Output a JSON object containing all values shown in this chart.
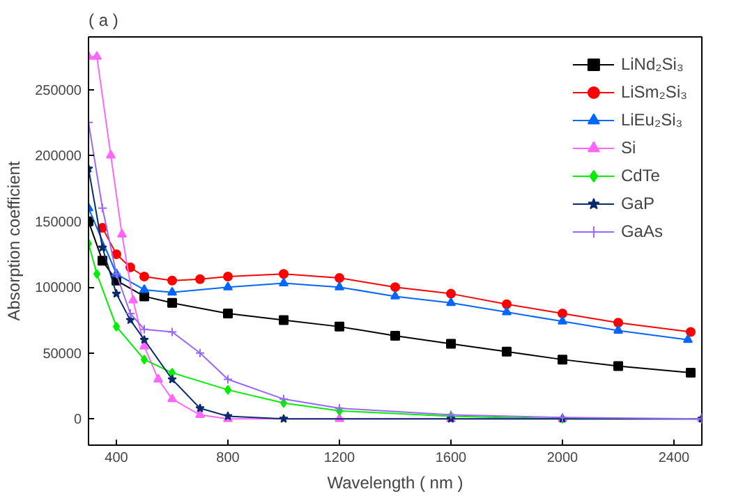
{
  "chart_data": {
    "type": "line",
    "title": "( a )",
    "xlabel": "Wavelength ( nm )",
    "ylabel": "Absorption coefficient",
    "xlim": [
      300,
      2500
    ],
    "xticks": [
      400,
      800,
      1200,
      1600,
      2000,
      2400
    ],
    "ylim": [
      -20000,
      290000
    ],
    "yticks": [
      0,
      50000,
      100000,
      150000,
      200000,
      250000
    ],
    "grid": false,
    "legend": "top right",
    "line_style": "solid",
    "series": [
      {
        "name": "LiNd₂Si₃",
        "color": "#000000",
        "marker": "square",
        "x": [
          300,
          350,
          400,
          500,
          600,
          800,
          1000,
          1200,
          1400,
          1600,
          1800,
          2000,
          2200,
          2460
        ],
        "values": [
          150000,
          120000,
          105000,
          93000,
          88000,
          80000,
          75000,
          70000,
          63000,
          57000,
          51000,
          45000,
          40000,
          35000
        ]
      },
      {
        "name": "LiSm₂Si₃",
        "color": "#ff0000",
        "marker": "circle",
        "x": [
          350,
          400,
          450,
          500,
          600,
          700,
          800,
          1000,
          1200,
          1400,
          1600,
          1800,
          2000,
          2200,
          2460
        ],
        "values": [
          145000,
          125000,
          115000,
          108000,
          105000,
          106000,
          108000,
          110000,
          107000,
          100000,
          95000,
          87000,
          80000,
          73000,
          66000
        ]
      },
      {
        "name": "LiEu₂Si₃",
        "color": "#0066ff",
        "marker": "triangle",
        "x": [
          300,
          400,
          500,
          600,
          800,
          1000,
          1200,
          1400,
          1600,
          1800,
          2000,
          2200,
          2450
        ],
        "values": [
          160000,
          110000,
          98000,
          96000,
          100000,
          103000,
          100000,
          93000,
          88000,
          81000,
          74000,
          67000,
          60000
        ]
      },
      {
        "name": "Si",
        "color": "#ff66ff",
        "marker": "triangle",
        "x": [
          300,
          330,
          380,
          420,
          460,
          500,
          550,
          600,
          700,
          800,
          1200,
          1600,
          2000,
          2500
        ],
        "values": [
          275000,
          275000,
          200000,
          140000,
          90000,
          55000,
          30000,
          15000,
          3000,
          0,
          0,
          0,
          0,
          0
        ]
      },
      {
        "name": "CdTe",
        "color": "#00ee00",
        "marker": "diamond",
        "x": [
          300,
          330,
          400,
          500,
          600,
          800,
          1000,
          1200,
          1600,
          2000,
          2500
        ],
        "values": [
          133000,
          110000,
          70000,
          45000,
          35000,
          22000,
          12000,
          6000,
          2000,
          0,
          0
        ]
      },
      {
        "name": "GaP",
        "color": "#0a2a6e",
        "marker": "star",
        "x": [
          300,
          350,
          400,
          450,
          500,
          600,
          700,
          800,
          1000,
          1600,
          2000,
          2500
        ],
        "values": [
          190000,
          130000,
          95000,
          75000,
          60000,
          30000,
          8000,
          2000,
          0,
          0,
          0,
          0
        ]
      },
      {
        "name": "GaAs",
        "color": "#9966ff",
        "marker": "cross",
        "x": [
          300,
          350,
          400,
          450,
          500,
          600,
          700,
          800,
          1000,
          1200,
          1600,
          2000,
          2500
        ],
        "values": [
          225000,
          160000,
          110000,
          80000,
          68000,
          66000,
          50000,
          30000,
          15000,
          8000,
          3000,
          1000,
          0
        ]
      }
    ]
  }
}
